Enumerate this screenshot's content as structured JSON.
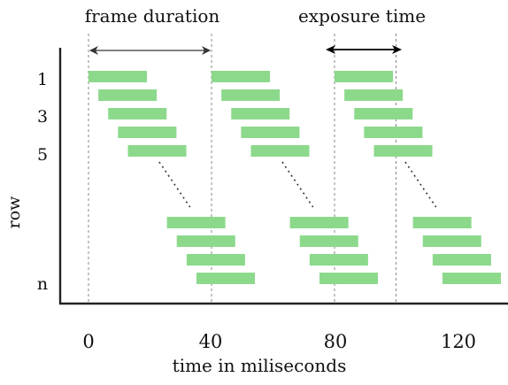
{
  "annotations": {
    "frame_duration": "frame duration",
    "exposure_time": "exposure time"
  },
  "axes": {
    "xlabel": "time in miliseconds",
    "ylabel": "row",
    "x_ticks": [
      "0",
      "40",
      "80",
      "120"
    ],
    "y_ticks": [
      "1",
      "3",
      "5",
      "n"
    ]
  },
  "colors": {
    "bar": "#8cd98c",
    "axis": "#222222",
    "guide": "#888888",
    "arrow": "#333333"
  },
  "timing": {
    "frame_duration_ms": 40,
    "exposure_time_ms": 19,
    "row_offset_ms": 3.2,
    "frame_starts_ms": [
      0,
      40,
      80
    ],
    "visible_top_rows": 5,
    "visible_bottom_rows": 4
  }
}
